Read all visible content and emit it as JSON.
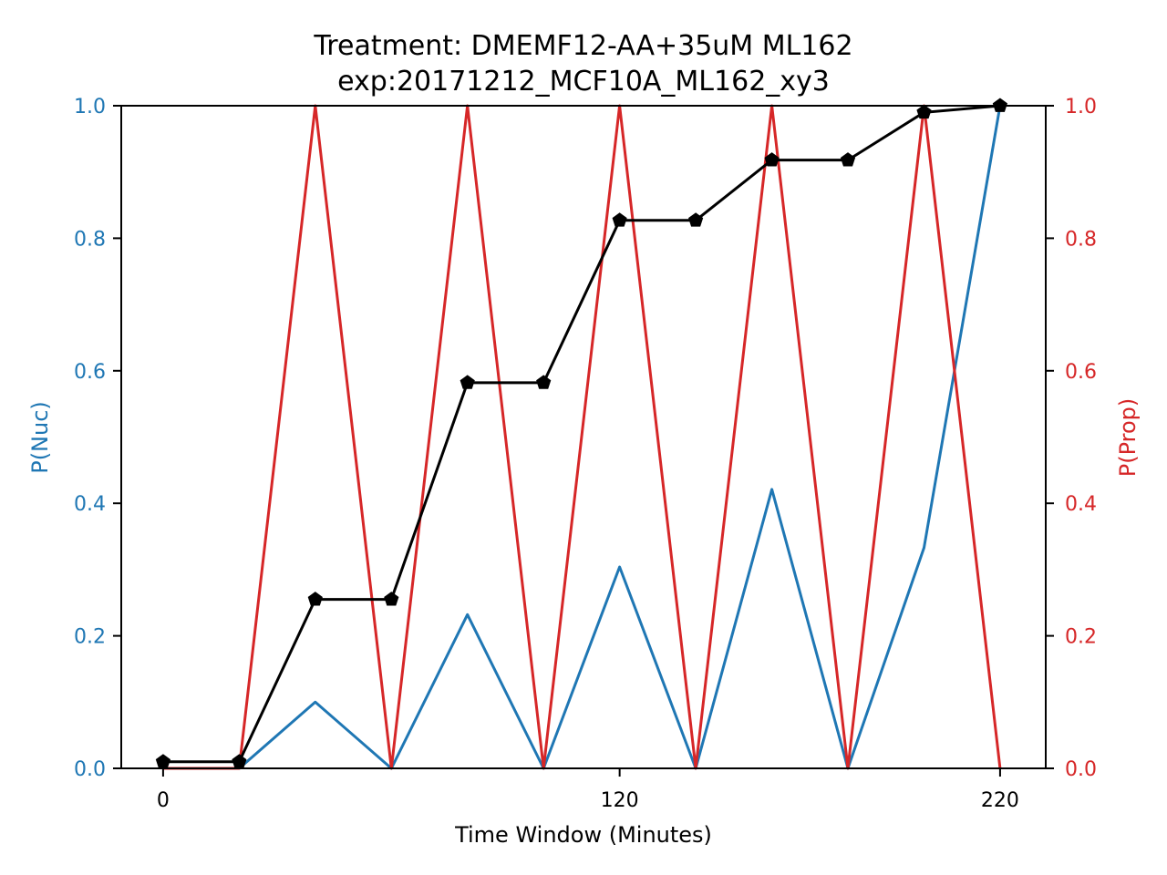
{
  "chart_data": {
    "type": "line",
    "title": "Treatment: DMEMF12-AA+35uM ML162",
    "subtitle": "exp:20171212_MCF10A_ML162_xy3",
    "xlabel": "Time Window (Minutes)",
    "ylabel": "P(Nuc)",
    "ylabel_right": "P(Prop)",
    "x_ticks": [
      0,
      120,
      220
    ],
    "x_tick_labels": [
      "0",
      "120",
      "220"
    ],
    "xlim": [
      -11,
      232
    ],
    "y_ticks": [
      0.0,
      0.2,
      0.4,
      0.6,
      0.8,
      1.0
    ],
    "y_tick_labels": [
      "0.0",
      "0.2",
      "0.4",
      "0.6",
      "0.8",
      "1.0"
    ],
    "ylim": [
      0,
      1
    ],
    "y_right_ticks": [
      0.0,
      0.2,
      0.4,
      0.6,
      0.8,
      1.0
    ],
    "y_right_tick_labels": [
      "0.0",
      "0.2",
      "0.4",
      "0.6",
      "0.8",
      "1.0"
    ],
    "ylim_right": [
      0,
      1
    ],
    "grid": false,
    "x": [
      0,
      20,
      40,
      60,
      80,
      100,
      120,
      140,
      160,
      180,
      200,
      220
    ],
    "series": [
      {
        "axis": "left",
        "color": "#1f77b4",
        "marker": "none",
        "values": [
          0.0,
          0.0,
          0.1,
          0.0,
          0.232,
          0.0,
          0.304,
          0.0,
          0.421,
          0.0,
          0.333,
          1.0
        ]
      },
      {
        "axis": "right",
        "color": "#d62728",
        "marker": "none",
        "values": [
          0.0,
          0.0,
          1.0,
          0.0,
          1.0,
          0.0,
          1.0,
          0.0,
          1.0,
          0.0,
          1.0,
          0.0
        ]
      },
      {
        "axis": "left",
        "color": "#000000",
        "marker": "pentagon",
        "values": [
          0.01,
          0.01,
          0.255,
          0.255,
          0.582,
          0.582,
          0.827,
          0.827,
          0.918,
          0.918,
          0.99,
          1.0
        ]
      }
    ],
    "left_axis_color": "#1f77b4",
    "right_axis_color": "#d62728"
  }
}
